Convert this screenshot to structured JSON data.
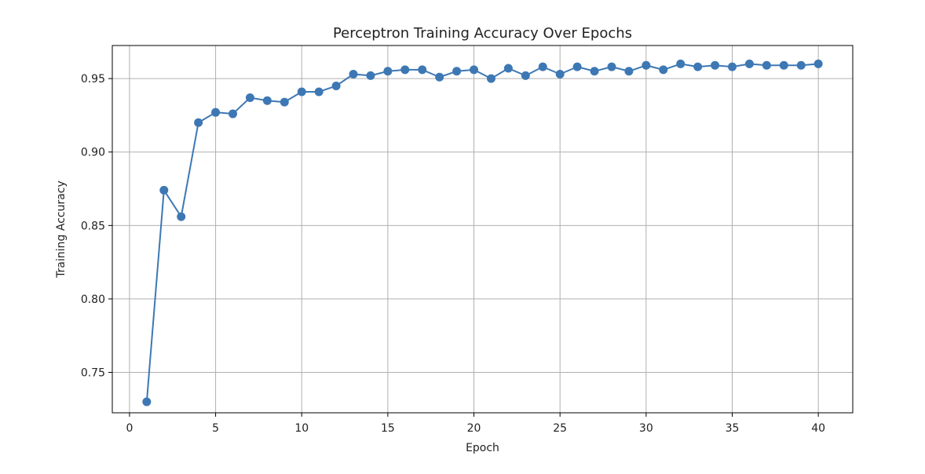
{
  "chart_data": {
    "type": "line",
    "title": "Perceptron Training Accuracy Over Epochs",
    "xlabel": "Epoch",
    "ylabel": "Training Accuracy",
    "xlim": [
      -1,
      42
    ],
    "ylim": [
      0.7225,
      0.9725
    ],
    "xticks": [
      0,
      5,
      10,
      15,
      20,
      25,
      30,
      35,
      40
    ],
    "yticks": [
      0.75,
      0.8,
      0.85,
      0.9,
      0.95
    ],
    "xtick_labels": [
      "0",
      "5",
      "10",
      "15",
      "20",
      "25",
      "30",
      "35",
      "40"
    ],
    "ytick_labels": [
      "0.75",
      "0.80",
      "0.85",
      "0.90",
      "0.95"
    ],
    "grid": true,
    "legend": "none",
    "series": [
      {
        "color": "#3d78b4",
        "marker": "circle",
        "x": [
          1,
          2,
          3,
          4,
          5,
          6,
          7,
          8,
          9,
          10,
          11,
          12,
          13,
          14,
          15,
          16,
          17,
          18,
          19,
          20,
          21,
          22,
          23,
          24,
          25,
          26,
          27,
          28,
          29,
          30,
          31,
          32,
          33,
          34,
          35,
          36,
          37,
          38,
          39,
          40
        ],
        "y": [
          0.73,
          0.874,
          0.856,
          0.92,
          0.927,
          0.926,
          0.937,
          0.935,
          0.934,
          0.941,
          0.941,
          0.945,
          0.953,
          0.952,
          0.955,
          0.956,
          0.956,
          0.951,
          0.955,
          0.956,
          0.95,
          0.957,
          0.952,
          0.958,
          0.953,
          0.958,
          0.955,
          0.958,
          0.955,
          0.959,
          0.956,
          0.96,
          0.958,
          0.959,
          0.958,
          0.96,
          0.959,
          0.959,
          0.959,
          0.96
        ]
      }
    ]
  }
}
